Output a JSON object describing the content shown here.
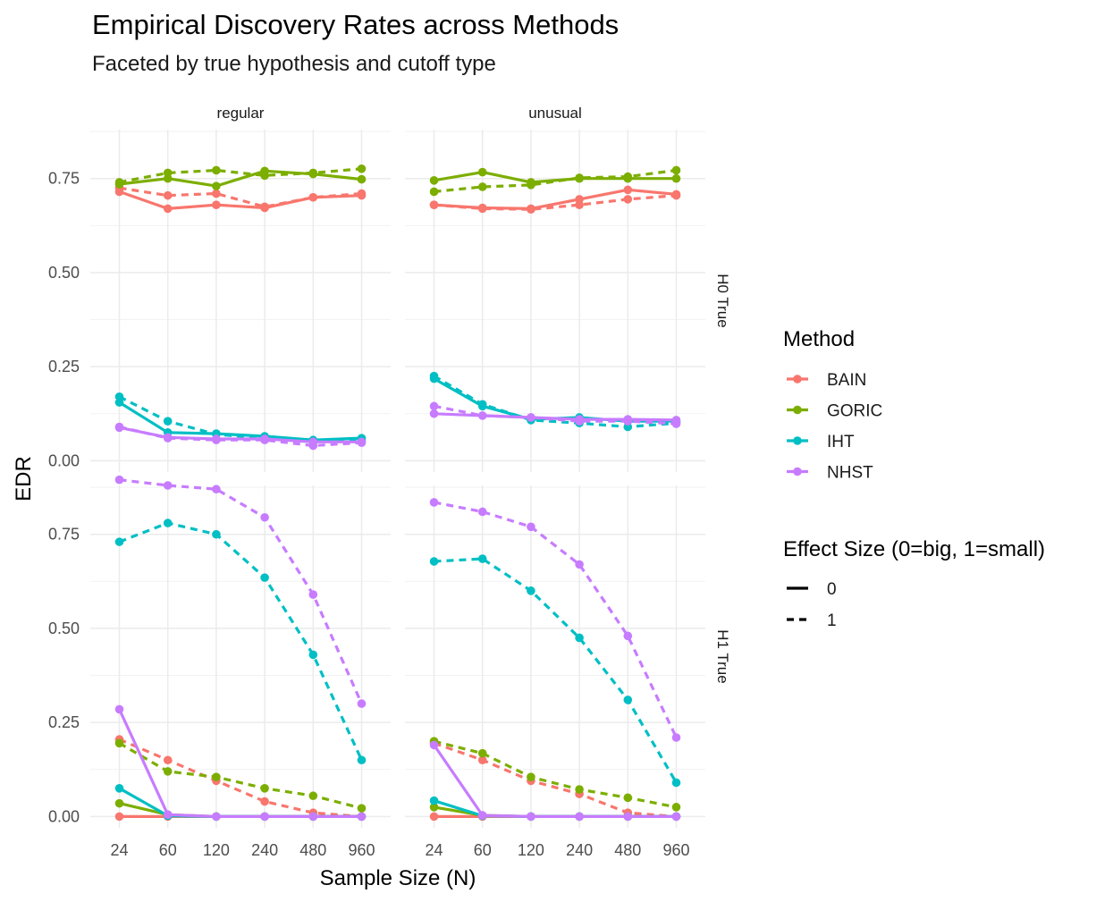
{
  "chart_data": {
    "type": "line",
    "title": "Empirical Discovery Rates across Methods",
    "subtitle": "Faceted by true hypothesis and cutoff type",
    "xlabel": "Sample Size (N)",
    "ylabel": "EDR",
    "x_categories": [
      "24",
      "60",
      "120",
      "240",
      "480",
      "960"
    ],
    "y_ticks": [
      0,
      0.25,
      0.5,
      0.75
    ],
    "y_tick_labels": [
      "0.00",
      "0.25",
      "0.50",
      "0.75"
    ],
    "y_range": [
      -0.03,
      0.88
    ],
    "column_facets": [
      "regular",
      "unusual"
    ],
    "row_facets": [
      "H0 True",
      "H1 True"
    ],
    "legend": {
      "method_title": "Method",
      "methods": [
        {
          "name": "BAIN",
          "color": "#F8766D"
        },
        {
          "name": "GORIC",
          "color": "#7CAE00"
        },
        {
          "name": "IHT",
          "color": "#00BFC4"
        },
        {
          "name": "NHST",
          "color": "#C77CFF"
        }
      ],
      "effect_title": "Effect Size (0=big, 1=small)",
      "effects": [
        {
          "name": "0",
          "linetype": "solid"
        },
        {
          "name": "1",
          "linetype": "dashed"
        }
      ]
    },
    "panels": [
      {
        "column": "regular",
        "row": "H0 True",
        "series": [
          {
            "method": "BAIN",
            "effect": "0",
            "values": [
              0.715,
              0.67,
              0.68,
              0.672,
              0.7,
              0.705
            ]
          },
          {
            "method": "BAIN",
            "effect": "1",
            "values": [
              0.725,
              0.705,
              0.71,
              0.675,
              0.7,
              0.71
            ]
          },
          {
            "method": "GORIC",
            "effect": "0",
            "values": [
              0.735,
              0.75,
              0.73,
              0.77,
              0.762,
              0.748
            ]
          },
          {
            "method": "GORIC",
            "effect": "1",
            "values": [
              0.74,
              0.765,
              0.772,
              0.758,
              0.765,
              0.776
            ]
          },
          {
            "method": "IHT",
            "effect": "0",
            "values": [
              0.155,
              0.075,
              0.072,
              0.065,
              0.055,
              0.06
            ]
          },
          {
            "method": "IHT",
            "effect": "1",
            "values": [
              0.17,
              0.105,
              0.07,
              0.06,
              0.05,
              0.055
            ]
          },
          {
            "method": "NHST",
            "effect": "0",
            "values": [
              0.088,
              0.062,
              0.058,
              0.058,
              0.05,
              0.05
            ]
          },
          {
            "method": "NHST",
            "effect": "1",
            "values": [
              0.09,
              0.06,
              0.055,
              0.055,
              0.04,
              0.048
            ]
          }
        ]
      },
      {
        "column": "unusual",
        "row": "H0 True",
        "series": [
          {
            "method": "BAIN",
            "effect": "0",
            "values": [
              0.68,
              0.672,
              0.67,
              0.695,
              0.72,
              0.708
            ]
          },
          {
            "method": "BAIN",
            "effect": "1",
            "values": [
              0.68,
              0.67,
              0.668,
              0.68,
              0.695,
              0.705
            ]
          },
          {
            "method": "GORIC",
            "effect": "0",
            "values": [
              0.745,
              0.767,
              0.74,
              0.75,
              0.75,
              0.75
            ]
          },
          {
            "method": "GORIC",
            "effect": "1",
            "values": [
              0.715,
              0.728,
              0.733,
              0.752,
              0.755,
              0.772
            ]
          },
          {
            "method": "IHT",
            "effect": "0",
            "values": [
              0.218,
              0.145,
              0.11,
              0.115,
              0.105,
              0.105
            ]
          },
          {
            "method": "IHT",
            "effect": "1",
            "values": [
              0.225,
              0.15,
              0.108,
              0.1,
              0.09,
              0.1
            ]
          },
          {
            "method": "NHST",
            "effect": "0",
            "values": [
              0.125,
              0.12,
              0.115,
              0.11,
              0.11,
              0.108
            ]
          },
          {
            "method": "NHST",
            "effect": "1",
            "values": [
              0.145,
              0.12,
              0.115,
              0.105,
              0.105,
              0.098
            ]
          }
        ]
      },
      {
        "column": "regular",
        "row": "H1 True",
        "series": [
          {
            "method": "BAIN",
            "effect": "0",
            "values": [
              0.0,
              0.0,
              0.0,
              0.0,
              0.0,
              0.0
            ]
          },
          {
            "method": "BAIN",
            "effect": "1",
            "values": [
              0.205,
              0.15,
              0.095,
              0.04,
              0.01,
              0.0
            ]
          },
          {
            "method": "GORIC",
            "effect": "0",
            "values": [
              0.035,
              0.005,
              0.0,
              0.0,
              0.0,
              0.0
            ]
          },
          {
            "method": "GORIC",
            "effect": "1",
            "values": [
              0.195,
              0.12,
              0.105,
              0.075,
              0.055,
              0.022
            ]
          },
          {
            "method": "IHT",
            "effect": "0",
            "values": [
              0.075,
              0.002,
              0.0,
              0.0,
              0.0,
              0.0
            ]
          },
          {
            "method": "IHT",
            "effect": "1",
            "values": [
              0.73,
              0.78,
              0.75,
              0.635,
              0.43,
              0.15
            ]
          },
          {
            "method": "NHST",
            "effect": "0",
            "values": [
              0.285,
              0.005,
              0.0,
              0.0,
              0.0,
              0.0
            ]
          },
          {
            "method": "NHST",
            "effect": "1",
            "values": [
              0.895,
              0.88,
              0.87,
              0.795,
              0.59,
              0.3
            ]
          }
        ]
      },
      {
        "column": "unusual",
        "row": "H1 True",
        "series": [
          {
            "method": "BAIN",
            "effect": "0",
            "values": [
              0.0,
              0.0,
              0.0,
              0.0,
              0.0,
              0.0
            ]
          },
          {
            "method": "BAIN",
            "effect": "1",
            "values": [
              0.195,
              0.15,
              0.095,
              0.06,
              0.01,
              0.0
            ]
          },
          {
            "method": "GORIC",
            "effect": "0",
            "values": [
              0.025,
              0.003,
              0.0,
              0.0,
              0.0,
              0.0
            ]
          },
          {
            "method": "GORIC",
            "effect": "1",
            "values": [
              0.2,
              0.168,
              0.105,
              0.072,
              0.05,
              0.025
            ]
          },
          {
            "method": "IHT",
            "effect": "0",
            "values": [
              0.042,
              0.002,
              0.0,
              0.0,
              0.0,
              0.0
            ]
          },
          {
            "method": "IHT",
            "effect": "1",
            "values": [
              0.678,
              0.685,
              0.6,
              0.475,
              0.31,
              0.09
            ]
          },
          {
            "method": "NHST",
            "effect": "0",
            "values": [
              0.19,
              0.003,
              0.0,
              0.0,
              0.0,
              0.0
            ]
          },
          {
            "method": "NHST",
            "effect": "1",
            "values": [
              0.835,
              0.81,
              0.77,
              0.67,
              0.48,
              0.21
            ]
          }
        ]
      }
    ]
  }
}
